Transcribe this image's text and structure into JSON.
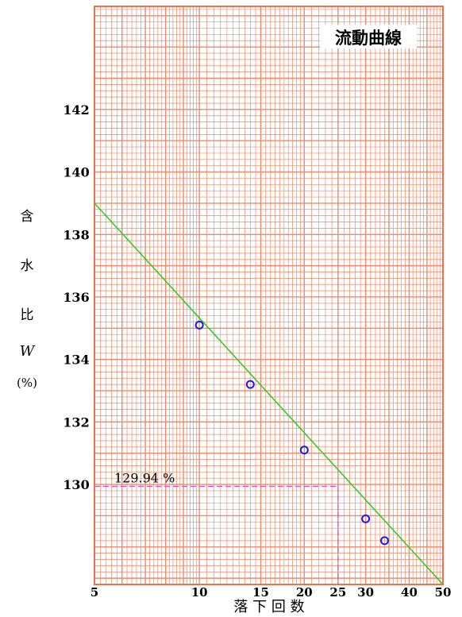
{
  "chart_data": {
    "type": "scatter",
    "title": "流動曲線",
    "xlabel": "落 下 回 数",
    "ylabel_chars": [
      "含",
      "水",
      "比",
      "W"
    ],
    "ylabel_unit": "(%)",
    "x_scale": "log",
    "xlim": [
      5,
      50
    ],
    "ylim": [
      126.8,
      145.3
    ],
    "x_ticks": [
      5,
      10,
      15,
      20,
      25,
      30,
      40,
      50
    ],
    "y_ticks": [
      130,
      132,
      134,
      136,
      138,
      140,
      142
    ],
    "points": [
      {
        "x": 10,
        "y": 135.1
      },
      {
        "x": 14,
        "y": 133.2
      },
      {
        "x": 20,
        "y": 131.1
      },
      {
        "x": 30,
        "y": 128.9
      },
      {
        "x": 34,
        "y": 128.2
      }
    ],
    "fit_line": {
      "x": [
        5,
        50
      ],
      "y": [
        139.0,
        126.8
      ]
    },
    "reference": {
      "x": 25,
      "y": 129.94,
      "label": "129.94 %"
    },
    "grid": true,
    "colors": {
      "grid": "#f08a6a",
      "frame": "#f07050",
      "line": "#22cc22",
      "points": "#1a1aee",
      "reference": "#d84ad8"
    }
  }
}
